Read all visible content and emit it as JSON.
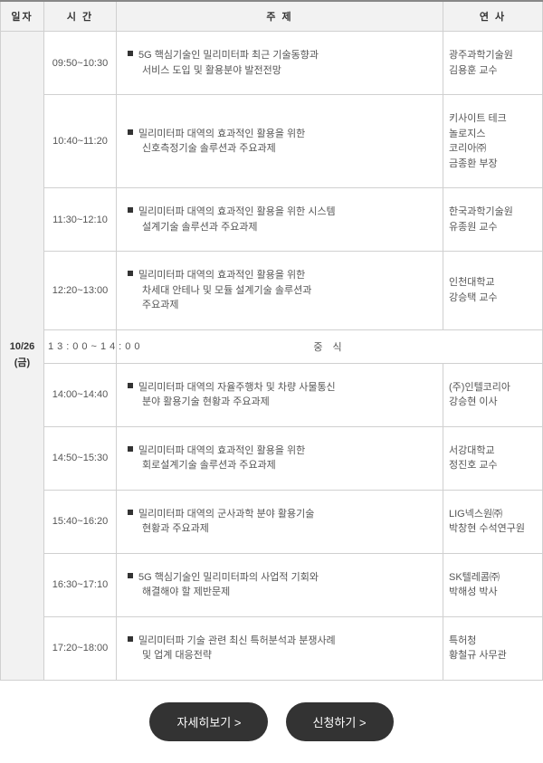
{
  "headers": {
    "date": "일자",
    "time": "시 간",
    "topic": "주 제",
    "speaker": "연 사"
  },
  "date_label": "10/26\n(금)",
  "sessions": [
    {
      "time": "09:50~10:30",
      "topic_line1": "5G 핵심기술인 밀리미터파 최근 기술동향과",
      "topic_line2": "서비스 도입 및 활용분야 발전전망",
      "speaker_line1": "광주과학기술원",
      "speaker_line2": "김용훈 교수"
    },
    {
      "time": "10:40~11:20",
      "topic_line1": "밀리미터파 대역의 효과적인 활용을 위한",
      "topic_line2": "신호측정기술 솔루션과 주요과제",
      "speaker_line1": "키사이트 테크\n놀로지스\n코리아㈜",
      "speaker_line2": "금종환 부장"
    },
    {
      "time": "11:30~12:10",
      "topic_line1": "밀리미터파 대역의 효과적인 활용을 위한 시스템",
      "topic_line2": "설계기술 솔루션과 주요과제",
      "speaker_line1": "한국과학기술원",
      "speaker_line2": "유종원 교수"
    },
    {
      "time": "12:20~13:00",
      "topic_line1": "밀리미터파 대역의 효과적인 활용을 위한",
      "topic_line2": "차세대 안테나 및 모듈 설계기술 솔루션과",
      "topic_line3": "주요과제",
      "speaker_line1": "인천대학교",
      "speaker_line2": "강승택 교수"
    }
  ],
  "lunch": {
    "time": "13:00~14:00",
    "label": "중 식"
  },
  "sessions_pm": [
    {
      "time": "14:00~14:40",
      "topic_line1": "밀리미터파 대역의 자율주행차 및 차량 사물통신",
      "topic_line2": "분야 활용기술 현황과 주요과제",
      "speaker_line1": "(주)인텔코리아",
      "speaker_line2": "강승현 이사"
    },
    {
      "time": "14:50~15:30",
      "topic_line1": "밀리미터파 대역의 효과적인 활용을 위한",
      "topic_line2": "회로설계기술 솔루션과 주요과제",
      "speaker_line1": "서강대학교",
      "speaker_line2": "정진호 교수"
    },
    {
      "time": "15:40~16:20",
      "topic_line1": "밀리미터파 대역의 군사과학 분야 활용기술",
      "topic_line2": "현황과 주요과제",
      "speaker_line1": "LIG넥스원㈜",
      "speaker_line2": "박창현 수석연구원"
    },
    {
      "time": "16:30~17:10",
      "topic_line1": "5G 핵심기술인 밀리미터파의 사업적 기회와",
      "topic_line2": "해결해야 할 제반문제",
      "speaker_line1": "SK텔레콤㈜",
      "speaker_line2": "박해성 박사"
    },
    {
      "time": "17:20~18:00",
      "topic_line1": "밀리미터파 기술 관련 최신 특허분석과 분쟁사례",
      "topic_line2": "및 업계 대응전략",
      "speaker_line1": "특허청",
      "speaker_line2": "황철규 사무관"
    }
  ],
  "buttons": {
    "detail": "자세히보기 >",
    "apply": "신청하기 >"
  },
  "colors": {
    "header_bg": "#f2f2f2",
    "border": "#d0d0d0",
    "text": "#555555",
    "btn_bg": "#333333",
    "btn_text": "#ffffff"
  }
}
